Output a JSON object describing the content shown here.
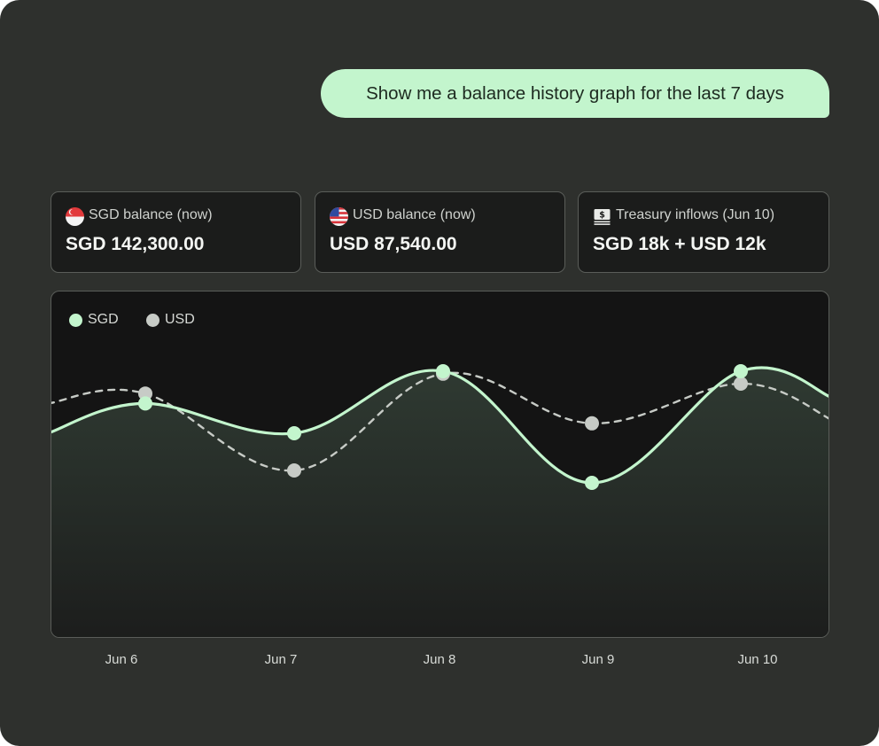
{
  "prompt": "Show me a balance history graph for the last 7 days",
  "cards": [
    {
      "label": "SGD balance (now)",
      "value": "SGD 142,300.00",
      "icon": "singapore-flag-icon"
    },
    {
      "label": "USD balance (now)",
      "value": "USD 87,540.00",
      "icon": "us-flag-icon"
    },
    {
      "label": "Treasury inflows (Jun 10)",
      "value": "SGD 18k + USD 12k",
      "icon": "banknote-icon"
    }
  ],
  "colors": {
    "sgd": "#c3f5cd",
    "usd": "#c7cbc6",
    "bubble": "#c3f5cd",
    "background": "#2e302d"
  },
  "chart_data": {
    "type": "line",
    "x": [
      "Jun 6",
      "Jun 7",
      "Jun 8",
      "Jun 9",
      "Jun 10"
    ],
    "legend_position": "top-left",
    "grid": false,
    "area_fill": "SGD",
    "series": [
      {
        "name": "SGD",
        "values": [
          0.62,
          0.5,
          0.75,
          0.3,
          0.75
        ],
        "style": "solid"
      },
      {
        "name": "USD",
        "values": [
          0.66,
          0.35,
          0.74,
          0.54,
          0.7
        ],
        "style": "dashed"
      }
    ],
    "ylim": [
      0,
      1
    ]
  }
}
